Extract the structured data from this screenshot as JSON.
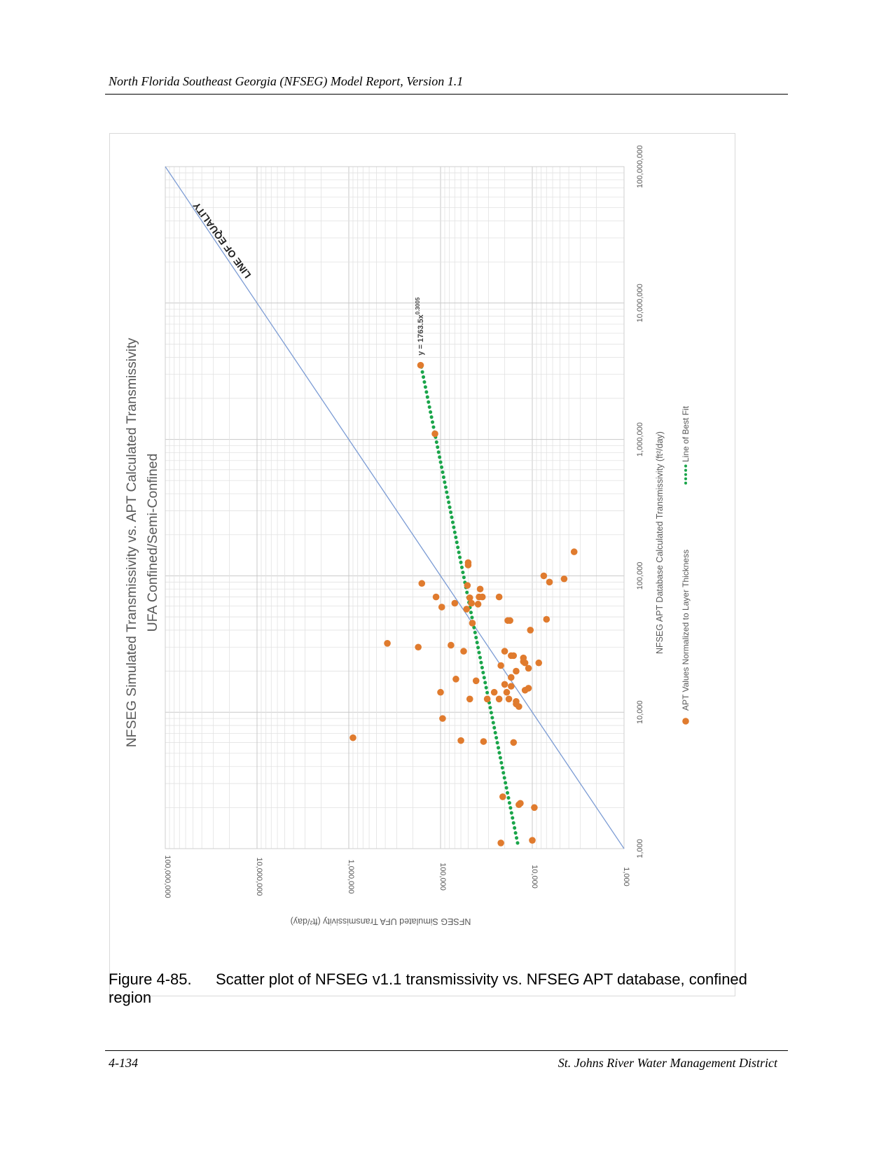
{
  "header": {
    "title": "North Florida Southeast Georgia (NFSEG) Model Report, Version 1.1"
  },
  "caption": {
    "label": "Figure 4-85.",
    "text_line1": "Scatter plot of NFSEG v1.1 transmissivity vs. NFSEG APT database, confined",
    "text_line2": "region"
  },
  "footer": {
    "page_number": "4-134",
    "organization": "St. Johns River Water Management District"
  },
  "chart_data": {
    "type": "scatter",
    "title": "NFSEG Simulated Transmissivity vs. APT Calculated Transmissivity",
    "subtitle": "UFA Confined/Semi-Confined",
    "xlabel": "NFSEG APT Database Calculated Transmissivity (ft²/day)",
    "ylabel": "NFSEG Simulated UFA Transmissivity (ft²/day)",
    "x_scale": "log",
    "y_scale": "log",
    "xlim": [
      1000,
      100000000
    ],
    "ylim": [
      1000,
      100000000
    ],
    "x_tick_labels": [
      "1,000",
      "10,000",
      "100,000",
      "1,000,000",
      "10,000,000",
      "100,000,000"
    ],
    "y_tick_labels": [
      "1,000",
      "10,000",
      "100,000",
      "1,000,000",
      "10,000,000",
      "100,000,000"
    ],
    "grid": true,
    "legend_position": "bottom",
    "colors": {
      "points": "#e07b2e",
      "best_fit": "#1aa54a",
      "equality": "#7b9bd4",
      "grid": "#d9d9d9"
    },
    "annotations": {
      "equality_label": "LINE OF EQUALITY",
      "fit_equation": "y = 1763.5x",
      "fit_exponent": "0.3005"
    },
    "series": [
      {
        "name": "APT Values Normalized to Layer Thickness",
        "marker": "circle",
        "points": [
          [
            1100,
            22000
          ],
          [
            1150,
            10000
          ],
          [
            2000,
            9500
          ],
          [
            2100,
            14000
          ],
          [
            2150,
            13500
          ],
          [
            2400,
            21000
          ],
          [
            6000,
            16000
          ],
          [
            6100,
            34000
          ],
          [
            6200,
            60000
          ],
          [
            6500,
            900000
          ],
          [
            9000,
            95000
          ],
          [
            11000,
            14000
          ],
          [
            11500,
            15000
          ],
          [
            12000,
            15000
          ],
          [
            12500,
            31000
          ],
          [
            12500,
            48000
          ],
          [
            12500,
            18000
          ],
          [
            12500,
            23000
          ],
          [
            14000,
            100000
          ],
          [
            14000,
            26000
          ],
          [
            14000,
            19000
          ],
          [
            14500,
            12000
          ],
          [
            15000,
            11000
          ],
          [
            15500,
            17000
          ],
          [
            16000,
            20000
          ],
          [
            17000,
            41000
          ],
          [
            17500,
            68000
          ],
          [
            18000,
            17000
          ],
          [
            20000,
            15000
          ],
          [
            21000,
            11000
          ],
          [
            22000,
            22000
          ],
          [
            23000,
            8500
          ],
          [
            23000,
            12000
          ],
          [
            23500,
            12500
          ],
          [
            25000,
            12500
          ],
          [
            26000,
            17000
          ],
          [
            26000,
            16000
          ],
          [
            28000,
            56000
          ],
          [
            28000,
            20000
          ],
          [
            30000,
            175000
          ],
          [
            31000,
            77000
          ],
          [
            32000,
            380000
          ],
          [
            40000,
            10500
          ],
          [
            45000,
            45000
          ],
          [
            47000,
            18500
          ],
          [
            47000,
            17500
          ],
          [
            48000,
            7000
          ],
          [
            57000,
            52000
          ],
          [
            59000,
            97000
          ],
          [
            62000,
            39000
          ],
          [
            63000,
            70000
          ],
          [
            63000,
            46000
          ],
          [
            69000,
            48000
          ],
          [
            70000,
            35000
          ],
          [
            70000,
            112000
          ],
          [
            70000,
            38000
          ],
          [
            70000,
            23000
          ],
          [
            80000,
            37000
          ],
          [
            85000,
            51000
          ],
          [
            88000,
            160000
          ],
          [
            90000,
            6500
          ],
          [
            95000,
            4500
          ],
          [
            100000,
            7500
          ],
          [
            120000,
            50000
          ],
          [
            125000,
            50000
          ],
          [
            150000,
            3500
          ],
          [
            3500000,
            165000
          ],
          [
            1100000,
            115000
          ]
        ]
      },
      {
        "name": "Line of Best Fit",
        "style": "dotted",
        "x_range": [
          1100,
          3500000
        ]
      },
      {
        "name": "Line of Equality",
        "style": "solid",
        "x_range": [
          1000,
          100000000
        ]
      }
    ]
  }
}
